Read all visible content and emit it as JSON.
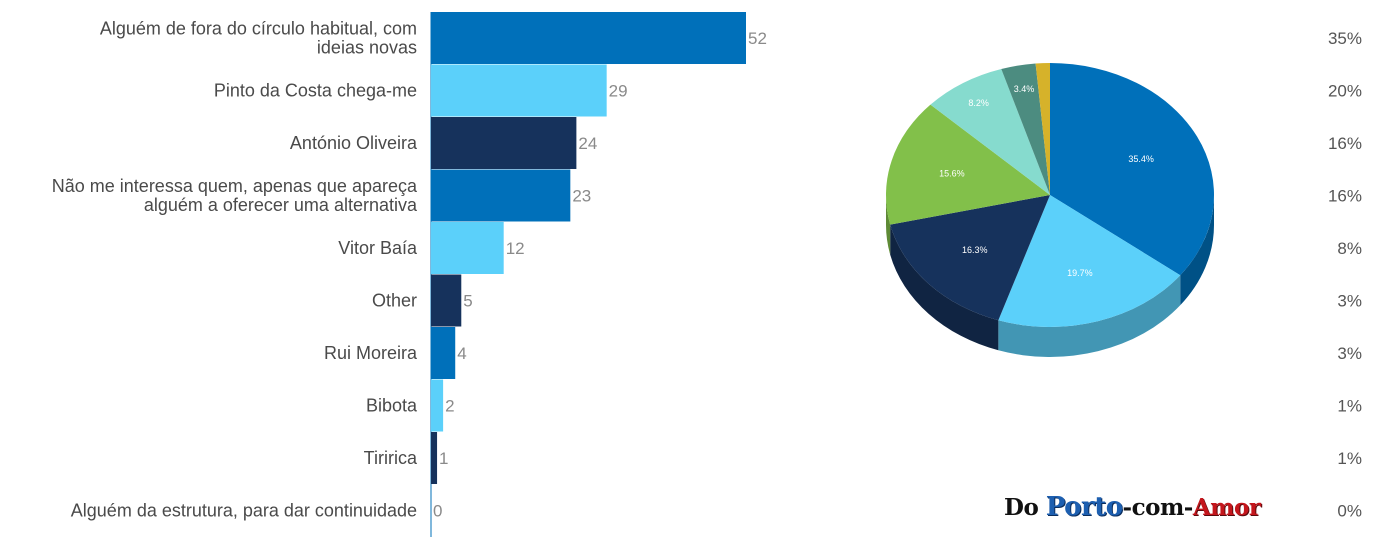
{
  "chart_data": {
    "type": "bar",
    "orientation": "horizontal",
    "categories": [
      [
        "Alguém de fora do círculo habitual, com",
        "ideias novas"
      ],
      [
        "Pinto da Costa chega-me"
      ],
      [
        "António Oliveira"
      ],
      [
        "Não me interessa quem, apenas que apareça",
        "alguém a oferecer uma alternativa"
      ],
      [
        "Vitor Baía"
      ],
      [
        "Other"
      ],
      [
        "Rui Moreira"
      ],
      [
        "Bibota"
      ],
      [
        "Tiririca"
      ],
      [
        "Alguém da estrutura, para dar continuidade"
      ]
    ],
    "values": [
      52,
      29,
      24,
      23,
      12,
      5,
      4,
      2,
      1,
      0
    ],
    "value_labels": [
      "52",
      "29",
      "24",
      "23",
      "12",
      "5",
      "4",
      "2",
      "1",
      "0"
    ],
    "percentages": [
      "35%",
      "20%",
      "16%",
      "16%",
      "8%",
      "3%",
      "3%",
      "1%",
      "1%",
      "0%"
    ],
    "bar_colors": [
      "#0070ba",
      "#5bd0fa",
      "#16325c",
      "#0070ba",
      "#5bd0fa",
      "#16325c",
      "#0070ba",
      "#5bd0fa",
      "#16325c",
      "#0070ba"
    ],
    "title": "",
    "xlabel": "",
    "ylabel": "",
    "xlim": [
      0,
      52
    ],
    "grid": false,
    "legend": "none",
    "pie": {
      "type": "pie",
      "style": "3d",
      "slices": [
        {
          "value": 35.4,
          "label": "35.4%",
          "color": "#0070ba"
        },
        {
          "value": 19.7,
          "label": "19.7%",
          "color": "#5bd0fa"
        },
        {
          "value": 16.3,
          "label": "16.3%",
          "color": "#16325c"
        },
        {
          "value": 15.6,
          "label": "15.6%",
          "color": "#82c04a"
        },
        {
          "value": 8.2,
          "label": "8.2%",
          "color": "#86dbce"
        },
        {
          "value": 3.4,
          "label": "3.4%",
          "color": "#4c8c80"
        },
        {
          "value": 1.4,
          "label": "",
          "color": "#d6b22a"
        }
      ]
    }
  },
  "watermark": {
    "part1": "Do ",
    "part2": "Porto",
    "part3": "-com-",
    "part4": "Amor"
  }
}
